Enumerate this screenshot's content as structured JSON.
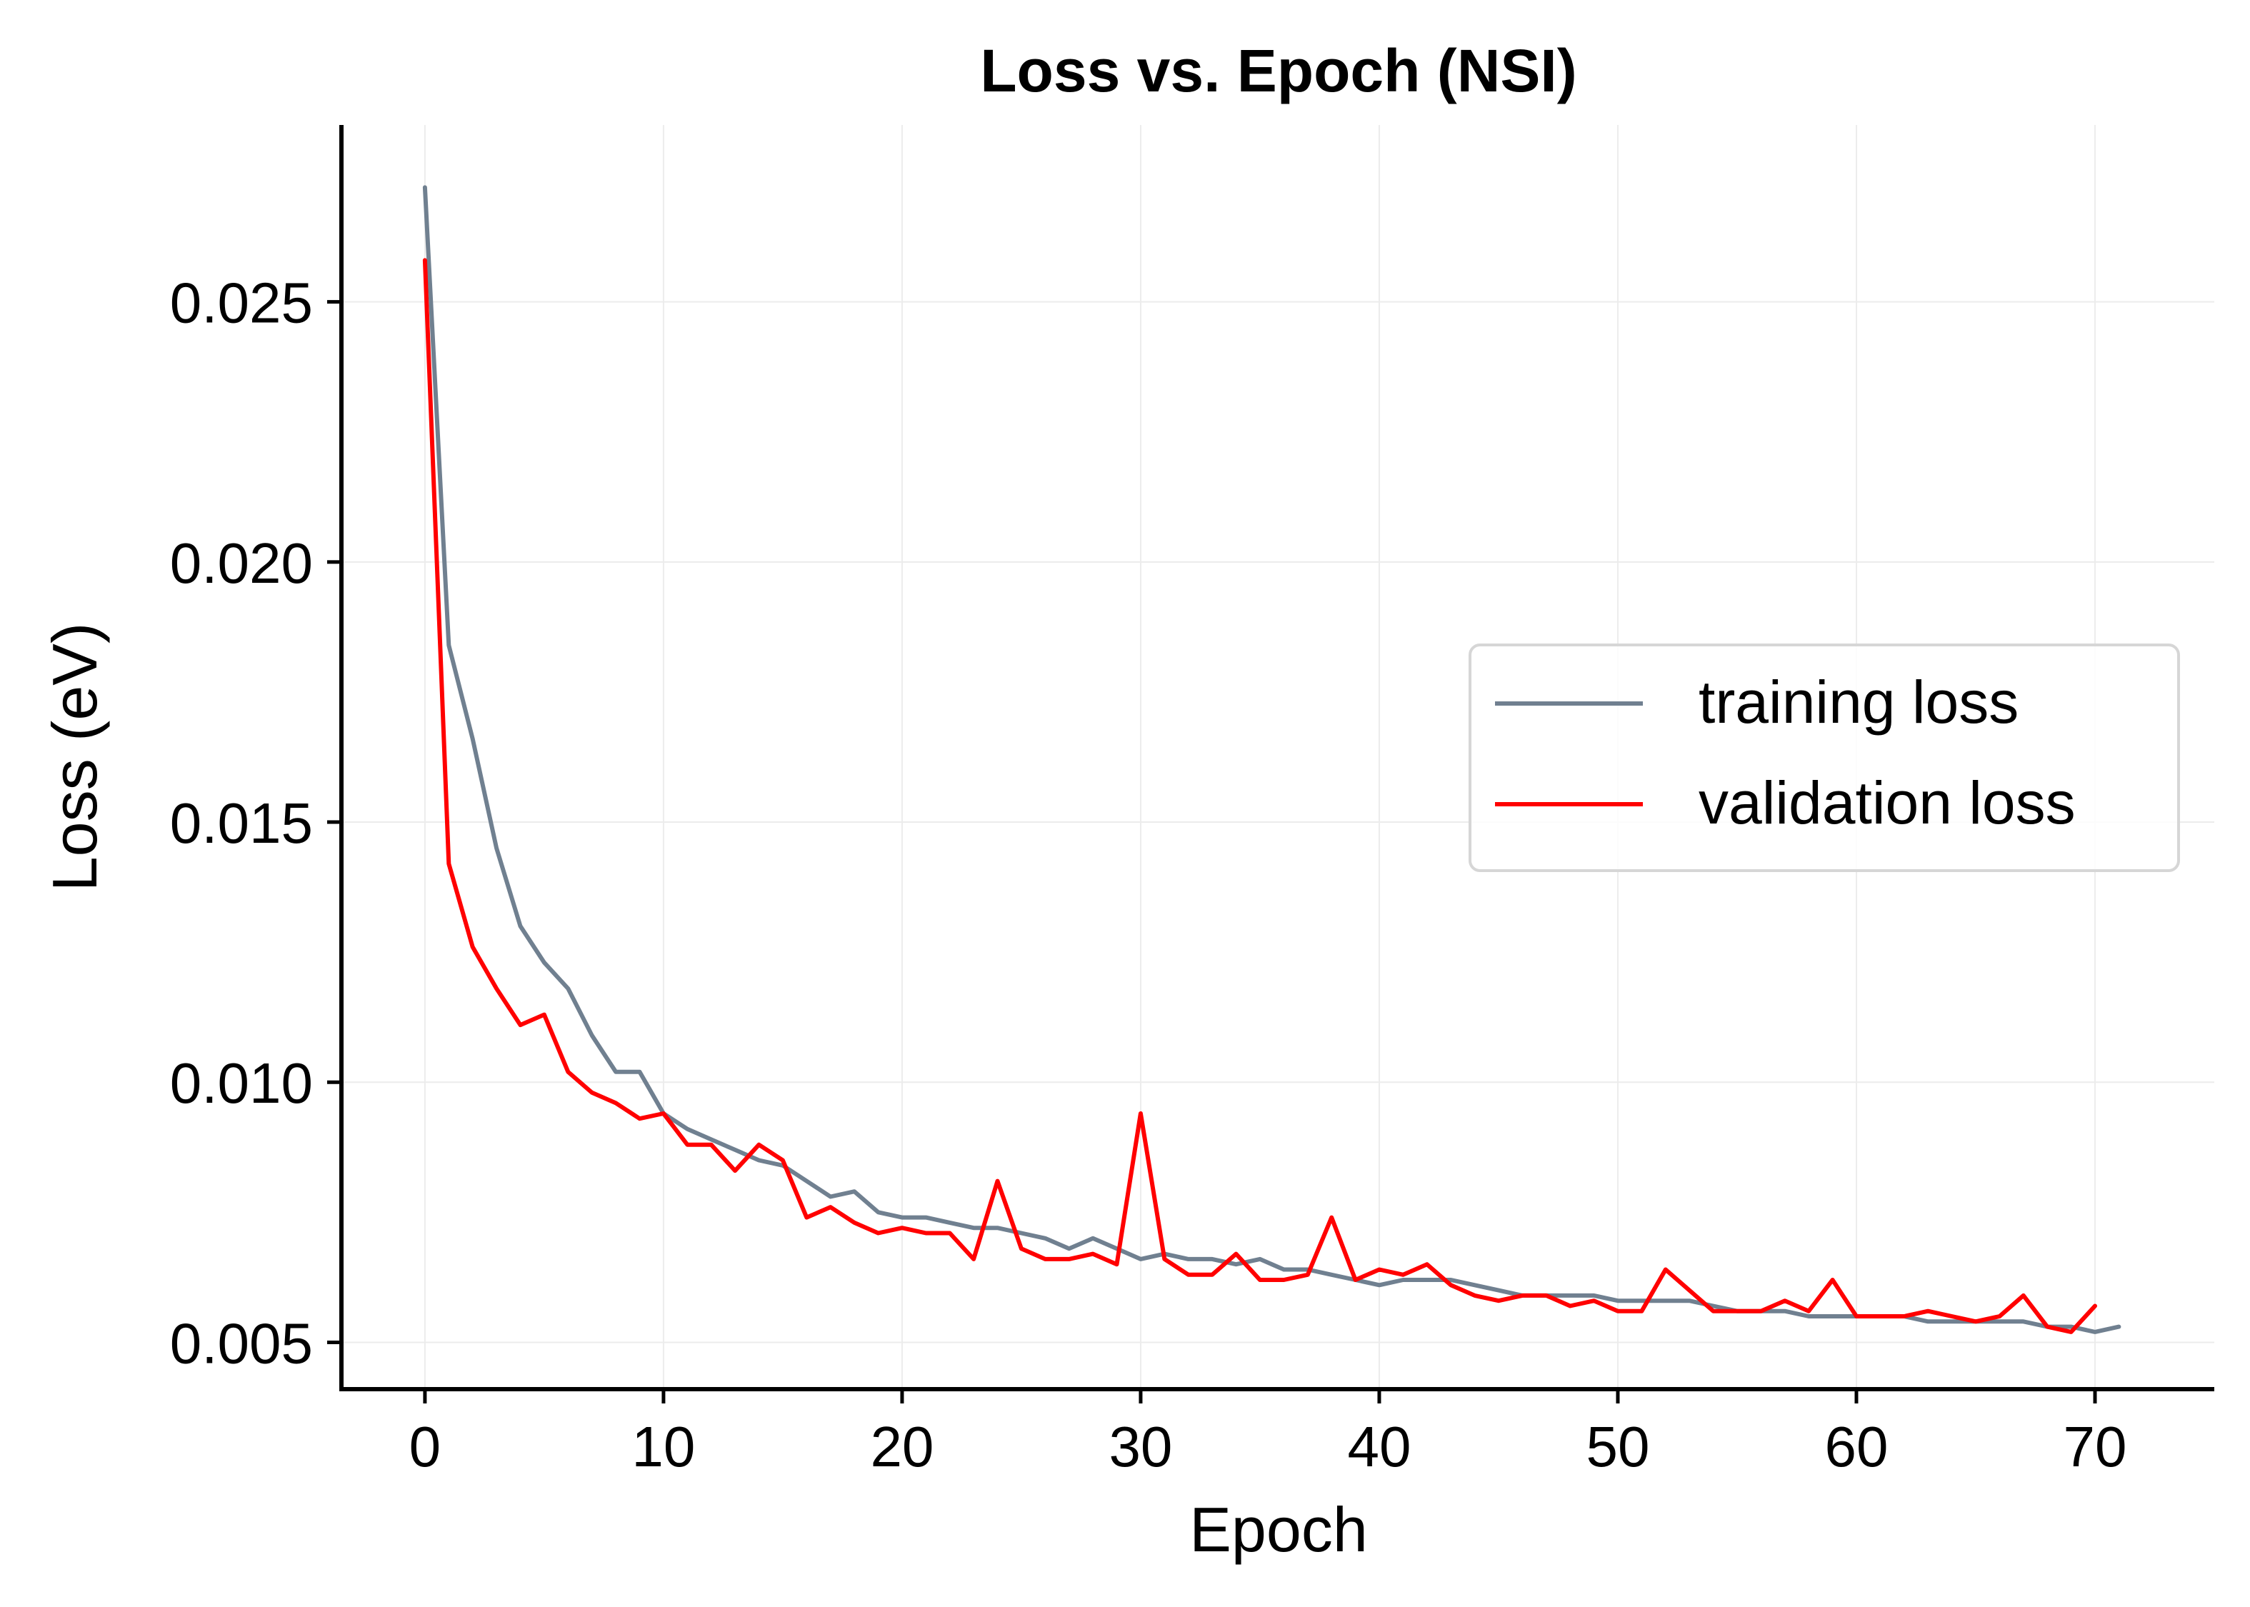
{
  "chart_data": {
    "type": "line",
    "title": "Loss vs. Epoch (NSI)",
    "xlabel": "Epoch",
    "ylabel": "Loss (eV)",
    "xlim": [
      -3.5,
      75
    ],
    "ylim": [
      0.0041,
      0.0284
    ],
    "xticks": [
      0,
      10,
      20,
      30,
      40,
      50,
      60,
      70
    ],
    "xtick_labels": [
      "0",
      "10",
      "20",
      "30",
      "40",
      "50",
      "60",
      "70"
    ],
    "yticks": [
      0.005,
      0.01,
      0.015,
      0.02,
      0.025
    ],
    "ytick_labels": [
      "0.005",
      "0.010",
      "0.015",
      "0.020",
      "0.025"
    ],
    "grid": true,
    "legend_position": "center-right",
    "series": [
      {
        "name": "training loss",
        "color": "#708090",
        "x": [
          0,
          1,
          2,
          3,
          4,
          5,
          6,
          7,
          8,
          9,
          10,
          11,
          12,
          13,
          14,
          15,
          16,
          17,
          18,
          19,
          20,
          21,
          22,
          23,
          24,
          25,
          26,
          27,
          28,
          29,
          30,
          31,
          32,
          33,
          34,
          35,
          36,
          37,
          38,
          39,
          40,
          41,
          42,
          43,
          44,
          45,
          46,
          47,
          48,
          49,
          50,
          51,
          52,
          53,
          54,
          55,
          56,
          57,
          58,
          59,
          60,
          61,
          62,
          63,
          64,
          65,
          66,
          67,
          68,
          69,
          70,
          71
        ],
        "values": [
          0.0272,
          0.0184,
          0.0166,
          0.0145,
          0.013,
          0.0123,
          0.0118,
          0.0109,
          0.0102,
          0.0102,
          0.0094,
          0.0091,
          0.0089,
          0.0087,
          0.0085,
          0.0084,
          0.0081,
          0.0078,
          0.0079,
          0.0075,
          0.0074,
          0.0074,
          0.0073,
          0.0072,
          0.0072,
          0.0071,
          0.007,
          0.0068,
          0.007,
          0.0068,
          0.0066,
          0.0067,
          0.0066,
          0.0066,
          0.0065,
          0.0066,
          0.0064,
          0.0064,
          0.0063,
          0.0062,
          0.0061,
          0.0062,
          0.0062,
          0.0062,
          0.0061,
          0.006,
          0.0059,
          0.0059,
          0.0059,
          0.0059,
          0.0058,
          0.0058,
          0.0058,
          0.0058,
          0.0057,
          0.0056,
          0.0056,
          0.0056,
          0.0055,
          0.0055,
          0.0055,
          0.0055,
          0.0055,
          0.0054,
          0.0054,
          0.0054,
          0.0054,
          0.0054,
          0.0053,
          0.0053,
          0.0052,
          0.0053
        ]
      },
      {
        "name": "validation loss",
        "color": "#ff0000",
        "x": [
          0,
          1,
          2,
          3,
          4,
          5,
          6,
          7,
          8,
          9,
          10,
          11,
          12,
          13,
          14,
          15,
          16,
          17,
          18,
          19,
          20,
          21,
          22,
          23,
          24,
          25,
          26,
          27,
          28,
          29,
          30,
          31,
          32,
          33,
          34,
          35,
          36,
          37,
          38,
          39,
          40,
          41,
          42,
          43,
          44,
          45,
          46,
          47,
          48,
          49,
          50,
          51,
          52,
          53,
          54,
          55,
          56,
          57,
          58,
          59,
          60,
          61,
          62,
          63,
          64,
          65,
          66,
          67,
          68,
          69,
          70
        ],
        "values": [
          0.0258,
          0.0142,
          0.0126,
          0.0118,
          0.0111,
          0.0113,
          0.0102,
          0.0098,
          0.0096,
          0.0093,
          0.0094,
          0.0088,
          0.0088,
          0.0083,
          0.0088,
          0.0085,
          0.0074,
          0.0076,
          0.0073,
          0.0071,
          0.0072,
          0.0071,
          0.0071,
          0.0066,
          0.0081,
          0.0068,
          0.0066,
          0.0066,
          0.0067,
          0.0065,
          0.0094,
          0.0066,
          0.0063,
          0.0063,
          0.0067,
          0.0062,
          0.0062,
          0.0063,
          0.0074,
          0.0062,
          0.0064,
          0.0063,
          0.0065,
          0.0061,
          0.0059,
          0.0058,
          0.0059,
          0.0059,
          0.0057,
          0.0058,
          0.0056,
          0.0056,
          0.0064,
          0.006,
          0.0056,
          0.0056,
          0.0056,
          0.0058,
          0.0056,
          0.0062,
          0.0055,
          0.0055,
          0.0055,
          0.0056,
          0.0055,
          0.0054,
          0.0055,
          0.0059,
          0.0053,
          0.0052,
          0.0057
        ]
      }
    ]
  }
}
